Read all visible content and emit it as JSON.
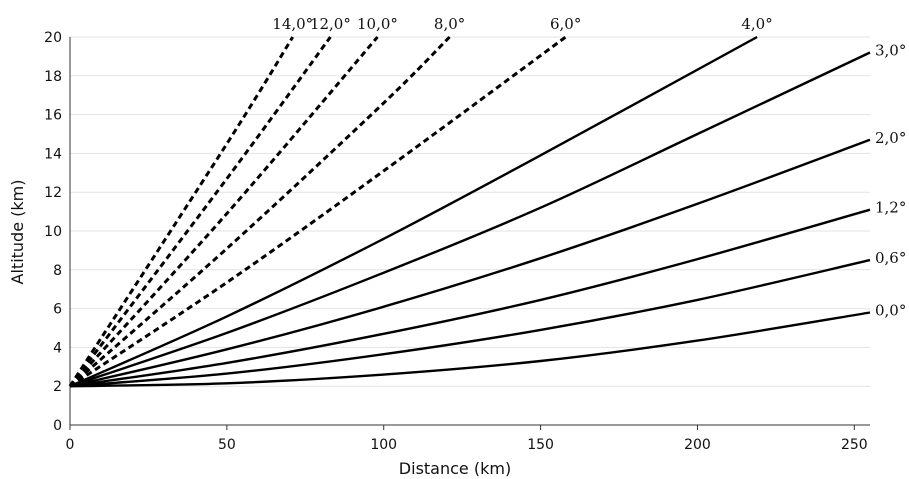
{
  "chart_data": {
    "type": "line",
    "title": "",
    "xlabel": "Distance (km)",
    "ylabel": "Altitude (km)",
    "xlim": [
      0,
      255
    ],
    "ylim": [
      0,
      20
    ],
    "xticks": [
      0,
      50,
      100,
      150,
      200,
      250
    ],
    "yticks": [
      0,
      2,
      4,
      6,
      8,
      10,
      12,
      14,
      16,
      18,
      20
    ],
    "grid": "horizontal",
    "legend": "none",
    "radar_altitude_km": 2,
    "series": [
      {
        "name": "0,0°",
        "elevation_deg": 0.0,
        "style": "solid",
        "points": [
          [
            0,
            2.0
          ],
          [
            50,
            2.15
          ],
          [
            100,
            2.6
          ],
          [
            150,
            3.3
          ],
          [
            200,
            4.35
          ],
          [
            255,
            5.8
          ]
        ]
      },
      {
        "name": "0,6°",
        "elevation_deg": 0.6,
        "style": "solid",
        "points": [
          [
            0,
            2.0
          ],
          [
            50,
            2.65
          ],
          [
            100,
            3.65
          ],
          [
            150,
            4.9
          ],
          [
            200,
            6.45
          ],
          [
            255,
            8.5
          ]
        ]
      },
      {
        "name": "1,2°",
        "elevation_deg": 1.2,
        "style": "solid",
        "points": [
          [
            0,
            2.0
          ],
          [
            50,
            3.2
          ],
          [
            100,
            4.7
          ],
          [
            150,
            6.45
          ],
          [
            200,
            8.55
          ],
          [
            255,
            11.1
          ]
        ]
      },
      {
        "name": "2,0°",
        "elevation_deg": 2.0,
        "style": "solid",
        "points": [
          [
            0,
            2.0
          ],
          [
            50,
            3.9
          ],
          [
            100,
            6.1
          ],
          [
            150,
            8.6
          ],
          [
            200,
            11.4
          ],
          [
            255,
            14.7
          ]
        ]
      },
      {
        "name": "3,0°",
        "elevation_deg": 3.0,
        "style": "solid",
        "points": [
          [
            0,
            2.0
          ],
          [
            50,
            4.75
          ],
          [
            100,
            7.85
          ],
          [
            150,
            11.2
          ],
          [
            200,
            15.0
          ],
          [
            255,
            19.2
          ]
        ]
      },
      {
        "name": "4,0°",
        "elevation_deg": 4.0,
        "style": "solid",
        "points": [
          [
            0,
            2.0
          ],
          [
            50,
            5.6
          ],
          [
            100,
            9.6
          ],
          [
            150,
            13.9
          ],
          [
            219,
            20.0
          ]
        ]
      },
      {
        "name": "6,0°",
        "elevation_deg": 6.0,
        "style": "dashed",
        "points": [
          [
            0,
            2.0
          ],
          [
            50,
            7.35
          ],
          [
            100,
            13.1
          ],
          [
            158,
            20.0
          ]
        ]
      },
      {
        "name": "8,0°",
        "elevation_deg": 8.0,
        "style": "dashed",
        "points": [
          [
            0,
            2.0
          ],
          [
            50,
            9.1
          ],
          [
            100,
            16.6
          ],
          [
            121,
            20.0
          ]
        ]
      },
      {
        "name": "10,0°",
        "elevation_deg": 10.0,
        "style": "dashed",
        "points": [
          [
            0,
            2.0
          ],
          [
            50,
            10.9
          ],
          [
            98,
            20.0
          ]
        ]
      },
      {
        "name": "12,0°",
        "elevation_deg": 12.0,
        "style": "dashed",
        "points": [
          [
            0,
            2.0
          ],
          [
            50,
            12.7
          ],
          [
            83,
            20.0
          ]
        ]
      },
      {
        "name": "14,0°",
        "elevation_deg": 14.0,
        "style": "dashed",
        "points": [
          [
            0,
            2.0
          ],
          [
            50,
            14.5
          ],
          [
            71,
            20.0
          ]
        ]
      }
    ]
  }
}
